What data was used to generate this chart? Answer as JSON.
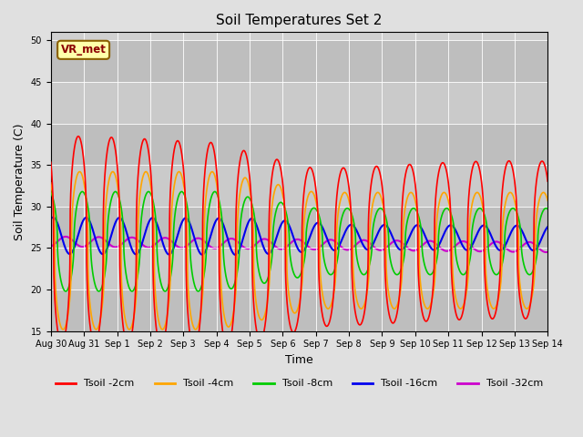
{
  "title": "Soil Temperatures Set 2",
  "xlabel": "Time",
  "ylabel": "Soil Temperature (C)",
  "ylim": [
    15,
    51
  ],
  "yticks": [
    15,
    20,
    25,
    30,
    35,
    40,
    45,
    50
  ],
  "series": {
    "Tsoil -2cm": {
      "color": "#FF0000",
      "linewidth": 1.2
    },
    "Tsoil -4cm": {
      "color": "#FFA500",
      "linewidth": 1.2
    },
    "Tsoil -8cm": {
      "color": "#00CC00",
      "linewidth": 1.2
    },
    "Tsoil -16cm": {
      "color": "#0000EE",
      "linewidth": 1.5
    },
    "Tsoil -32cm": {
      "color": "#CC00CC",
      "linewidth": 1.5
    }
  },
  "annotation_text": "VR_met",
  "annotation_fx": 0.02,
  "annotation_fy": 0.93,
  "n_days": 15,
  "points_per_day": 288,
  "tick_labels": [
    "Aug 30",
    "Aug 31",
    "Sep 1",
    "Sep 2",
    "Sep 3",
    "Sep 4",
    "Sep 5",
    "Sep 6",
    "Sep 7",
    "Sep 8",
    "Sep 9",
    "Sep 10",
    "Sep 11",
    "Sep 12",
    "Sep 13",
    "Sep 14"
  ]
}
